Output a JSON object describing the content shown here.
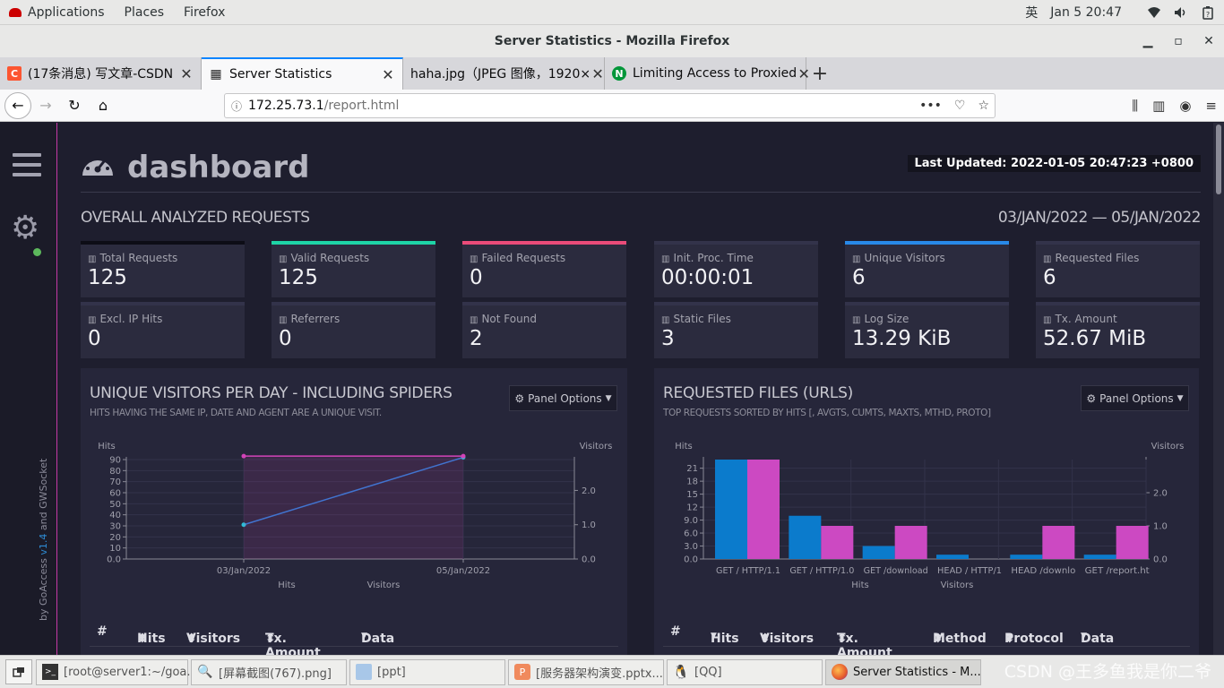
{
  "gnome": {
    "applications": "Applications",
    "places": "Places",
    "firefox": "Firefox",
    "ime": "英",
    "clock": "Jan 5  20:47",
    "icons": [
      "wifi-icon",
      "volume-icon",
      "power-icon"
    ]
  },
  "window": {
    "title": "Server Statistics - Mozilla Firefox"
  },
  "tabs": [
    {
      "label": "(17条消息) 写文章-CSDN",
      "favicon": "C",
      "color": "#fc5531"
    },
    {
      "label": "Server Statistics",
      "favicon": "▦",
      "color": "#222222"
    },
    {
      "label": "haha.jpg（JPEG 图像，1920×",
      "favicon": "",
      "color": ""
    },
    {
      "label": "Limiting Access to Proxied",
      "favicon": "N",
      "color": "#009639"
    }
  ],
  "url": {
    "host": "172.25.73.1",
    "path": "/report.html"
  },
  "dashboard": {
    "title": "dashboard",
    "last_updated": "Last Updated: 2022-01-05 20:47:23 +0800",
    "overall_title": "OVERALL ANALYZED REQUESTS",
    "date_range": "03/JAN/2022 — 05/JAN/2022",
    "credit_prefix": "by GoAccess ",
    "credit_version": "v1.4",
    "credit_suffix": " and GWSocket"
  },
  "cards": [
    {
      "label": "Total Requests",
      "value": "125",
      "accent": "#0d0d16"
    },
    {
      "label": "Valid Requests",
      "value": "125",
      "accent": "#1ed4a6"
    },
    {
      "label": "Failed Requests",
      "value": "0",
      "accent": "#ea4b79"
    },
    {
      "label": "Init. Proc. Time",
      "value": "00:00:01",
      "accent": "#33334a"
    },
    {
      "label": "Unique Visitors",
      "value": "6",
      "accent": "#2889e8"
    },
    {
      "label": "Requested Files",
      "value": "6",
      "accent": "#33334a"
    },
    {
      "label": "Excl. IP Hits",
      "value": "0",
      "accent": "#33334a"
    },
    {
      "label": "Referrers",
      "value": "0",
      "accent": "#33334a"
    },
    {
      "label": "Not Found",
      "value": "2",
      "accent": "#33334a"
    },
    {
      "label": "Static Files",
      "value": "3",
      "accent": "#33334a"
    },
    {
      "label": "Log Size",
      "value": "13.29 KiB",
      "accent": "#33334a"
    },
    {
      "label": "Tx. Amount",
      "value": "52.67 MiB",
      "accent": "#33334a"
    }
  ],
  "panels": {
    "visitors": {
      "title": "UNIQUE VISITORS PER DAY - INCLUDING SPIDERS",
      "subtitle": "HITS HAVING THE SAME IP, DATE AND AGENT ARE A UNIQUE VISIT.",
      "options": "Panel Options",
      "columns": [
        "#",
        "Hits",
        "Visitors",
        "Tx. Amount",
        "Data"
      ]
    },
    "requests": {
      "title": "REQUESTED FILES (URLS)",
      "subtitle": "TOP REQUESTS SORTED BY HITS [, AVGTS, CUMTS, MAXTS, MTHD, PROTO]",
      "options": "Panel Options",
      "columns": [
        "#",
        "Hits",
        "Visitors",
        "Tx. Amount",
        "Method",
        "Protocol",
        "Data"
      ]
    }
  },
  "chart_data": [
    {
      "type": "line",
      "x": [
        "03/Jan/2022",
        "05/Jan/2022"
      ],
      "series": [
        {
          "name": "Hits",
          "values": [
            31,
            92
          ],
          "axis": "left",
          "color": "#2d7bd4"
        },
        {
          "name": "Visitors",
          "values": [
            3,
            3
          ],
          "axis": "right",
          "color": "#d243b8"
        }
      ],
      "xlabel": "",
      "ylabel_left": "Hits",
      "ylabel_right": "Visitors",
      "left_ticks": [
        "90",
        "80",
        "70",
        "60",
        "50",
        "40",
        "30",
        "20",
        "10",
        "0.0"
      ],
      "right_ticks": [
        "2.0",
        "1.0",
        "0.0"
      ],
      "ylim_left": [
        0,
        90
      ],
      "ylim_right": [
        0,
        2.9
      ],
      "legend": [
        "Hits",
        "Visitors"
      ],
      "legend_position": "bottom"
    },
    {
      "type": "bar",
      "categories": [
        "GET / HTTP/1.1",
        "GET / HTTP/1.0",
        "GET /download",
        "HEAD / HTTP/1",
        "HEAD /downlo",
        "GET /report.ht"
      ],
      "series": [
        {
          "name": "Hits",
          "values": [
            23,
            10,
            3,
            1,
            1,
            1
          ],
          "axis": "left",
          "color": "#0b7bcc"
        },
        {
          "name": "Visitors",
          "values": [
            3,
            1,
            1,
            0,
            1,
            1
          ],
          "axis": "right",
          "color": "#cc49c2"
        }
      ],
      "ylabel_left": "Hits",
      "ylabel_right": "Visitors",
      "left_ticks": [
        "21",
        "18",
        "15",
        "12",
        "9.0",
        "6.0",
        "3.0",
        "0.0"
      ],
      "right_ticks": [
        "2.0",
        "1.0",
        "0.0"
      ],
      "ylim_left": [
        0,
        23
      ],
      "ylim_right": [
        0,
        3
      ],
      "legend": [
        "Hits",
        "Visitors"
      ],
      "legend_position": "bottom"
    }
  ],
  "taskbar": [
    {
      "label": "[root@server1:~/goa...",
      "icon": "terminal-icon",
      "active": false
    },
    {
      "label": "[屏幕截图(767).png]",
      "icon": "image-viewer-icon",
      "active": false
    },
    {
      "label": "[ppt]",
      "icon": "folder-icon",
      "active": false
    },
    {
      "label": "[服务器架构演变.pptx...",
      "icon": "wps-icon",
      "active": false
    },
    {
      "label": "[QQ]",
      "icon": "qq-icon",
      "active": false
    },
    {
      "label": "Server Statistics - M...",
      "icon": "firefox-icon",
      "active": true
    }
  ],
  "watermark": "CSDN @王多鱼我是你二爷"
}
